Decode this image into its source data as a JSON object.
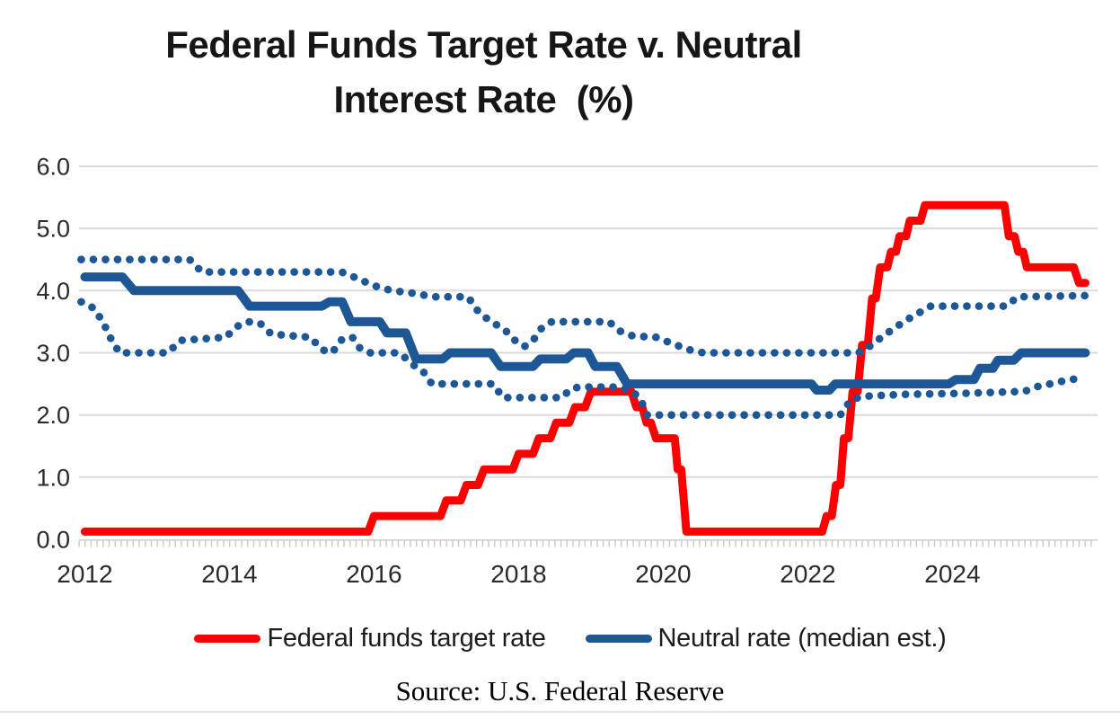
{
  "header": {
    "title_line1": "Federal Funds Target Rate v. Neutral",
    "title_line2": "Interest Rate  (%)"
  },
  "footer": {
    "source": "Source: U.S. Federal Reserve"
  },
  "colors": {
    "target_rate_red": "#fa0202",
    "neutral_rate_blue": "#1d5795",
    "gridline_gray": "#dadada",
    "axis_gray": "#cfcfcf",
    "tick_gray": "#c9c9c9",
    "text_dark": "#2a2a2a"
  },
  "chart_data": {
    "type": "line",
    "title": "Federal Funds Target Rate v. Neutral Interest Rate (%)",
    "xlabel": "",
    "ylabel": "",
    "x_domain": [
      2011.92,
      2026.0
    ],
    "ylim": [
      0.0,
      6.0
    ],
    "grid": true,
    "legend_position": "bottom",
    "x_ticks": [
      2012,
      2014,
      2016,
      2018,
      2020,
      2022,
      2024
    ],
    "y_ticks": [
      "0.0",
      "1.0",
      "2.0",
      "3.0",
      "4.0",
      "5.0",
      "6.0"
    ],
    "minor_x_tick_interval_years": 0.08333,
    "series": [
      {
        "name": "Federal funds target rate",
        "style": "solid",
        "color": "#fa0202",
        "width": 9,
        "in_legend": true,
        "points": [
          [
            2012.0,
            0.125
          ],
          [
            2015.92,
            0.125
          ],
          [
            2016.0,
            0.375
          ],
          [
            2016.92,
            0.375
          ],
          [
            2017.0,
            0.625
          ],
          [
            2017.2,
            0.625
          ],
          [
            2017.28,
            0.875
          ],
          [
            2017.44,
            0.875
          ],
          [
            2017.52,
            1.125
          ],
          [
            2017.92,
            1.125
          ],
          [
            2018.0,
            1.375
          ],
          [
            2018.2,
            1.375
          ],
          [
            2018.28,
            1.625
          ],
          [
            2018.44,
            1.625
          ],
          [
            2018.52,
            1.875
          ],
          [
            2018.7,
            1.875
          ],
          [
            2018.78,
            2.125
          ],
          [
            2018.92,
            2.125
          ],
          [
            2019.0,
            2.375
          ],
          [
            2019.56,
            2.375
          ],
          [
            2019.63,
            2.125
          ],
          [
            2019.71,
            2.125
          ],
          [
            2019.77,
            1.875
          ],
          [
            2019.83,
            1.875
          ],
          [
            2019.9,
            1.625
          ],
          [
            2020.16,
            1.625
          ],
          [
            2020.2,
            1.125
          ],
          [
            2020.25,
            1.125
          ],
          [
            2020.32,
            0.125
          ],
          [
            2022.2,
            0.125
          ],
          [
            2022.26,
            0.375
          ],
          [
            2022.33,
            0.375
          ],
          [
            2022.39,
            0.875
          ],
          [
            2022.45,
            0.875
          ],
          [
            2022.5,
            1.625
          ],
          [
            2022.56,
            1.625
          ],
          [
            2022.62,
            2.375
          ],
          [
            2022.69,
            2.375
          ],
          [
            2022.75,
            3.125
          ],
          [
            2022.83,
            3.125
          ],
          [
            2022.89,
            3.875
          ],
          [
            2022.94,
            3.875
          ],
          [
            2023.0,
            4.375
          ],
          [
            2023.1,
            4.375
          ],
          [
            2023.15,
            4.625
          ],
          [
            2023.22,
            4.625
          ],
          [
            2023.27,
            4.875
          ],
          [
            2023.36,
            4.875
          ],
          [
            2023.41,
            5.125
          ],
          [
            2023.56,
            5.125
          ],
          [
            2023.62,
            5.375
          ],
          [
            2024.72,
            5.375
          ],
          [
            2024.78,
            4.875
          ],
          [
            2024.86,
            4.875
          ],
          [
            2024.91,
            4.625
          ],
          [
            2024.98,
            4.625
          ],
          [
            2025.03,
            4.375
          ],
          [
            2025.68,
            4.375
          ],
          [
            2025.75,
            4.125
          ],
          [
            2025.84,
            4.125
          ]
        ]
      },
      {
        "name": "Neutral rate (median est.)",
        "style": "solid",
        "color": "#1d5795",
        "width": 10,
        "in_legend": true,
        "points": [
          [
            2012.0,
            4.22
          ],
          [
            2012.52,
            4.22
          ],
          [
            2012.68,
            4.0
          ],
          [
            2014.12,
            4.0
          ],
          [
            2014.28,
            3.75
          ],
          [
            2015.28,
            3.75
          ],
          [
            2015.38,
            3.82
          ],
          [
            2015.56,
            3.82
          ],
          [
            2015.68,
            3.5
          ],
          [
            2016.08,
            3.5
          ],
          [
            2016.18,
            3.32
          ],
          [
            2016.44,
            3.32
          ],
          [
            2016.58,
            2.9
          ],
          [
            2016.95,
            2.9
          ],
          [
            2017.05,
            3.0
          ],
          [
            2017.62,
            3.0
          ],
          [
            2017.75,
            2.78
          ],
          [
            2018.2,
            2.78
          ],
          [
            2018.3,
            2.9
          ],
          [
            2018.66,
            2.9
          ],
          [
            2018.76,
            3.0
          ],
          [
            2018.96,
            3.0
          ],
          [
            2019.06,
            2.78
          ],
          [
            2019.36,
            2.78
          ],
          [
            2019.5,
            2.5
          ],
          [
            2022.05,
            2.5
          ],
          [
            2022.12,
            2.4
          ],
          [
            2022.3,
            2.4
          ],
          [
            2022.38,
            2.5
          ],
          [
            2023.95,
            2.5
          ],
          [
            2024.05,
            2.57
          ],
          [
            2024.3,
            2.57
          ],
          [
            2024.38,
            2.75
          ],
          [
            2024.56,
            2.75
          ],
          [
            2024.63,
            2.88
          ],
          [
            2024.85,
            2.88
          ],
          [
            2024.95,
            3.0
          ],
          [
            2025.84,
            3.0
          ]
        ]
      },
      {
        "name": "Neutral rate range (upper estimate)",
        "style": "dotted",
        "color": "#1d5795",
        "width": 8.6,
        "in_legend": false,
        "points": [
          [
            2011.95,
            4.5
          ],
          [
            2013.45,
            4.5
          ],
          [
            2013.62,
            4.3
          ],
          [
            2015.55,
            4.3
          ],
          [
            2015.72,
            4.22
          ],
          [
            2015.88,
            4.14
          ],
          [
            2016.05,
            4.06
          ],
          [
            2016.25,
            4.0
          ],
          [
            2016.6,
            3.95
          ],
          [
            2016.8,
            3.9
          ],
          [
            2017.3,
            3.9
          ],
          [
            2017.45,
            3.65
          ],
          [
            2017.62,
            3.5
          ],
          [
            2017.8,
            3.38
          ],
          [
            2017.95,
            3.2
          ],
          [
            2018.08,
            3.1
          ],
          [
            2018.2,
            3.2
          ],
          [
            2018.32,
            3.4
          ],
          [
            2018.46,
            3.5
          ],
          [
            2019.25,
            3.5
          ],
          [
            2019.4,
            3.35
          ],
          [
            2019.58,
            3.27
          ],
          [
            2019.9,
            3.25
          ],
          [
            2020.12,
            3.15
          ],
          [
            2020.35,
            3.05
          ],
          [
            2020.55,
            3.0
          ],
          [
            2022.7,
            3.0
          ],
          [
            2022.85,
            3.1
          ],
          [
            2023.02,
            3.25
          ],
          [
            2023.2,
            3.4
          ],
          [
            2023.4,
            3.55
          ],
          [
            2023.55,
            3.65
          ],
          [
            2023.7,
            3.75
          ],
          [
            2024.75,
            3.75
          ],
          [
            2024.9,
            3.9
          ],
          [
            2025.84,
            3.92
          ]
        ]
      },
      {
        "name": "Neutral rate range (lower estimate)",
        "style": "dotted",
        "color": "#1d5795",
        "width": 8.6,
        "in_legend": false,
        "points": [
          [
            2011.95,
            3.82
          ],
          [
            2012.12,
            3.72
          ],
          [
            2012.25,
            3.5
          ],
          [
            2012.35,
            3.25
          ],
          [
            2012.48,
            3.0
          ],
          [
            2013.15,
            3.0
          ],
          [
            2013.32,
            3.2
          ],
          [
            2013.95,
            3.25
          ],
          [
            2014.1,
            3.42
          ],
          [
            2014.25,
            3.5
          ],
          [
            2014.42,
            3.48
          ],
          [
            2014.58,
            3.3
          ],
          [
            2015.12,
            3.25
          ],
          [
            2015.28,
            3.05
          ],
          [
            2015.42,
            3.0
          ],
          [
            2015.56,
            3.22
          ],
          [
            2015.7,
            3.25
          ],
          [
            2015.82,
            3.05
          ],
          [
            2015.95,
            3.0
          ],
          [
            2016.35,
            3.0
          ],
          [
            2016.55,
            2.8
          ],
          [
            2016.68,
            2.7
          ],
          [
            2016.8,
            2.5
          ],
          [
            2017.65,
            2.5
          ],
          [
            2017.78,
            2.28
          ],
          [
            2018.6,
            2.28
          ],
          [
            2018.72,
            2.42
          ],
          [
            2018.85,
            2.45
          ],
          [
            2019.35,
            2.45
          ],
          [
            2019.55,
            2.4
          ],
          [
            2019.68,
            2.27
          ],
          [
            2019.78,
            2.0
          ],
          [
            2022.45,
            2.0
          ],
          [
            2022.6,
            2.25
          ],
          [
            2022.78,
            2.3
          ],
          [
            2023.3,
            2.33
          ],
          [
            2024.2,
            2.35
          ],
          [
            2025.0,
            2.38
          ],
          [
            2025.15,
            2.45
          ],
          [
            2025.35,
            2.5
          ],
          [
            2025.55,
            2.55
          ],
          [
            2025.8,
            2.6
          ]
        ]
      }
    ]
  }
}
